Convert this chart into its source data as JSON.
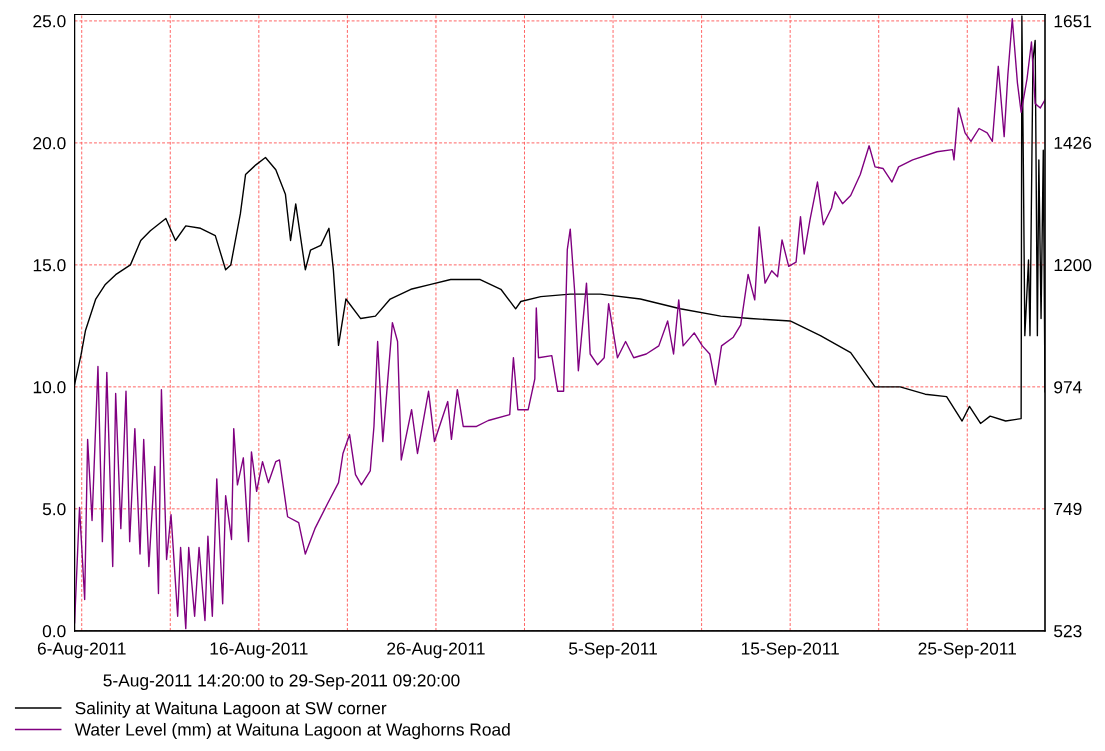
{
  "chart_data": {
    "type": "line",
    "xlim": [
      "2011-08-05T14:20",
      "2011-09-29T09:20"
    ],
    "xticks": [
      {
        "value": "2011-08-06",
        "label": "6-Aug-2011"
      },
      {
        "value": "2011-08-11",
        "label": null
      },
      {
        "value": "2011-08-16",
        "label": "16-Aug-2011"
      },
      {
        "value": "2011-08-21",
        "label": null
      },
      {
        "value": "2011-08-26",
        "label": "26-Aug-2011"
      },
      {
        "value": "2011-08-31",
        "label": null
      },
      {
        "value": "2011-09-05",
        "label": "5-Sep-2011"
      },
      {
        "value": "2011-09-10",
        "label": null
      },
      {
        "value": "2011-09-15",
        "label": "15-Sep-2011"
      },
      {
        "value": "2011-09-20",
        "label": null
      },
      {
        "value": "2011-09-25",
        "label": "25-Sep-2011"
      }
    ],
    "ylim": [
      0,
      25.26
    ],
    "yticks": [
      {
        "value": 0,
        "label": "0.0"
      },
      {
        "value": 5,
        "label": "5.0"
      },
      {
        "value": 10,
        "label": "10.0"
      },
      {
        "value": 15,
        "label": "15.0"
      },
      {
        "value": 20,
        "label": "20.0"
      },
      {
        "value": 25,
        "label": "25.0"
      }
    ],
    "y2lim": [
      523,
      1662.7
    ],
    "y2ticks": [
      523,
      749,
      974,
      1200,
      1426,
      1651
    ],
    "grid": true,
    "legend": "bottom",
    "marker": "none",
    "line_style": "solid",
    "annotations": [
      "5-Aug-2011 14:20:00 to 29-Sep-2011 09:20:00"
    ],
    "series": [
      {
        "name": "Salinity at Waituna Lagoon at SW corner",
        "color": "#000000",
        "x": [
          "2011-08-05T14:20",
          "2011-08-05T23:00",
          "2011-08-06T05:00",
          "2011-08-06T19:00",
          "2011-08-07T08:00",
          "2011-08-07T22:00",
          "2011-08-08T18:00",
          "2011-08-09T08:00",
          "2011-08-09T21:00",
          "2011-08-10T18:00",
          "2011-08-11T07:00",
          "2011-08-11T21:00",
          "2011-08-12T17:00",
          "2011-08-13T13:00",
          "2011-08-14T03:00",
          "2011-08-14T10:00",
          "2011-08-14T23:00",
          "2011-08-15T06:00",
          "2011-08-15T20:00",
          "2011-08-16T09:00",
          "2011-08-16T23:00",
          "2011-08-17T12:00",
          "2011-08-17T19:00",
          "2011-08-18T02:00",
          "2011-08-18T15:00",
          "2011-08-18T22:00",
          "2011-08-19T12:00",
          "2011-08-19T23:00",
          "2011-08-20T05:00",
          "2011-08-20T12:00",
          "2011-08-20T22:00",
          "2011-08-21T18:00",
          "2011-08-22T14:00",
          "2011-08-23T10:00",
          "2011-08-24T14:00",
          "2011-08-25T17:00",
          "2011-08-26T20:00",
          "2011-08-28T12:00",
          "2011-08-29T16:00",
          "2011-08-30T12:00",
          "2011-08-30T19:00",
          "2011-08-31T22:00",
          "2011-09-02T14:00",
          "2011-09-04T07:00",
          "2011-09-06T13:00",
          "2011-09-08T19:00",
          "2011-09-11T02:00",
          "2011-09-12T18:00",
          "2011-09-15T00:00",
          "2011-09-16T17:00",
          "2011-09-18T10:00",
          "2011-09-19T19:00",
          "2011-09-21T05:00",
          "2011-09-22T15:00",
          "2011-09-23T20:00",
          "2011-09-24T17:00",
          "2011-09-25T03:00",
          "2011-09-25T18:00",
          "2011-09-26T07:00",
          "2011-09-27T04:00",
          "2011-09-28T01:00",
          "2011-09-28T02:00",
          "2011-09-28T04:00",
          "2011-09-28T06:00",
          "2011-09-28T11:00",
          "2011-09-28T13:00",
          "2011-09-28T17:00",
          "2011-09-28T20:00",
          "2011-09-28T23:00",
          "2011-09-29T01:00",
          "2011-09-29T04:00",
          "2011-09-29T07:00",
          "2011-09-29T09:20"
        ],
        "values": [
          10.1,
          11.3,
          12.3,
          13.6,
          14.2,
          14.6,
          15.0,
          16.0,
          16.4,
          16.9,
          16.0,
          16.6,
          16.5,
          16.2,
          14.8,
          15.0,
          17.1,
          18.7,
          19.1,
          19.4,
          18.9,
          17.9,
          16.0,
          17.5,
          14.8,
          15.6,
          15.8,
          16.5,
          14.8,
          11.7,
          13.6,
          12.8,
          12.9,
          13.6,
          14.0,
          14.2,
          14.4,
          14.4,
          14.0,
          13.2,
          13.5,
          13.7,
          13.8,
          13.8,
          13.6,
          13.2,
          12.9,
          12.8,
          12.7,
          12.1,
          11.4,
          10.0,
          10.0,
          9.7,
          9.6,
          8.6,
          9.2,
          8.5,
          8.8,
          8.6,
          8.7,
          25.2,
          19.1,
          12.1,
          15.2,
          12.1,
          23.4,
          24.2,
          12.1,
          19.3,
          12.8,
          19.7,
          9.8
        ]
      },
      {
        "name": "Water Level (mm) at Waituna Lagoon at Waghorns Road",
        "color": "#800080",
        "axis": "y2",
        "x": [
          "2011-08-05T14:20",
          "2011-08-05T21:00",
          "2011-08-06T04:00",
          "2011-08-06T08:00",
          "2011-08-06T14:00",
          "2011-08-06T22:00",
          "2011-08-07T04:00",
          "2011-08-07T10:00",
          "2011-08-07T18:00",
          "2011-08-07T22:00",
          "2011-08-08T05:00",
          "2011-08-08T12:00",
          "2011-08-08T17:00",
          "2011-08-09T00:00",
          "2011-08-09T07:00",
          "2011-08-09T12:00",
          "2011-08-09T19:00",
          "2011-08-10T03:00",
          "2011-08-10T08:00",
          "2011-08-10T12:00",
          "2011-08-10T19:00",
          "2011-08-11T01:00",
          "2011-08-11T10:00",
          "2011-08-11T14:00",
          "2011-08-11T21:00",
          "2011-08-12T01:00",
          "2011-08-12T09:00",
          "2011-08-12T15:00",
          "2011-08-12T23:00",
          "2011-08-13T03:00",
          "2011-08-13T09:00",
          "2011-08-13T15:00",
          "2011-08-13T23:00",
          "2011-08-14T03:00",
          "2011-08-14T11:00",
          "2011-08-14T14:00",
          "2011-08-14T19:00",
          "2011-08-15T03:00",
          "2011-08-15T10:00",
          "2011-08-15T14:00",
          "2011-08-15T21:00",
          "2011-08-16T05:00",
          "2011-08-16T13:00",
          "2011-08-16T23:00",
          "2011-08-17T04:00",
          "2011-08-17T15:00",
          "2011-08-18T06:00",
          "2011-08-18T15:00",
          "2011-08-19T04:00",
          "2011-08-19T21:00",
          "2011-08-20T12:00",
          "2011-08-20T18:00",
          "2011-08-21T03:00",
          "2011-08-21T11:00",
          "2011-08-21T19:00",
          "2011-08-22T07:00",
          "2011-08-22T12:00",
          "2011-08-22T17:00",
          "2011-08-23T00:00",
          "2011-08-23T05:00",
          "2011-08-23T13:00",
          "2011-08-23T20:00",
          "2011-08-24T01:00",
          "2011-08-24T15:00",
          "2011-08-24T23:00",
          "2011-08-25T14:00",
          "2011-08-25T22:00",
          "2011-08-26T16:00",
          "2011-08-26T21:00",
          "2011-08-27T05:00",
          "2011-08-27T13:00",
          "2011-08-28T07:00",
          "2011-08-28T23:00",
          "2011-08-30T04:00",
          "2011-08-30T09:00",
          "2011-08-30T15:00",
          "2011-08-31T05:00",
          "2011-08-31T14:00",
          "2011-08-31T16:00",
          "2011-08-31T19:00",
          "2011-09-01T13:00",
          "2011-09-01T21:00",
          "2011-09-02T05:00",
          "2011-09-02T10:00",
          "2011-09-02T14:00",
          "2011-09-02T20:00",
          "2011-09-03T01:00",
          "2011-09-03T12:00",
          "2011-09-03T17:00",
          "2011-09-04T03:00",
          "2011-09-04T12:00",
          "2011-09-04T18:00",
          "2011-09-05T06:00",
          "2011-09-05T17:00",
          "2011-09-06T04:00",
          "2011-09-06T21:00",
          "2011-09-07T14:00",
          "2011-09-08T02:00",
          "2011-09-08T10:00",
          "2011-09-08T17:00",
          "2011-09-08T23:00",
          "2011-09-09T14:00",
          "2011-09-10T01:00",
          "2011-09-10T11:00",
          "2011-09-10T19:00",
          "2011-09-11T03:00",
          "2011-09-11T19:00",
          "2011-09-12T05:00",
          "2011-09-12T10:00",
          "2011-09-12T15:00",
          "2011-09-13T00:00",
          "2011-09-13T06:00",
          "2011-09-13T14:00",
          "2011-09-13T23:00",
          "2011-09-14T07:00",
          "2011-09-14T13:00",
          "2011-09-14T22:00",
          "2011-09-15T08:00",
          "2011-09-15T14:00",
          "2011-09-15T19:00",
          "2011-09-16T03:00",
          "2011-09-16T13:00",
          "2011-09-16T21:00",
          "2011-09-17T08:00",
          "2011-09-17T13:00",
          "2011-09-17T23:00",
          "2011-09-18T10:00",
          "2011-09-18T23:00",
          "2011-09-19T11:00",
          "2011-09-19T19:00",
          "2011-09-20T06:00",
          "2011-09-20T18:00",
          "2011-09-21T03:00",
          "2011-09-21T22:00",
          "2011-09-23T07:00",
          "2011-09-24T04:00",
          "2011-09-24T06:00",
          "2011-09-24T12:00",
          "2011-09-24T21:00",
          "2011-09-25T05:00",
          "2011-09-25T16:00",
          "2011-09-26T03:00",
          "2011-09-26T10:00",
          "2011-09-26T18:00",
          "2011-09-27T02:00",
          "2011-09-27T07:00",
          "2011-09-27T13:00",
          "2011-09-27T20:00",
          "2011-09-28T01:00",
          "2011-09-28T09:00",
          "2011-09-28T15:00",
          "2011-09-28T20:00",
          "2011-09-29T03:00",
          "2011-09-29T09:20"
        ],
        "values": [
          538,
          751,
          581,
          877,
          727,
          1012,
          688,
          1001,
          642,
          962,
          712,
          966,
          688,
          897,
          665,
          877,
          642,
          827,
          592,
          969,
          655,
          738,
          550,
          677,
          527,
          677,
          550,
          677,
          542,
          698,
          550,
          804,
          573,
          773,
          692,
          897,
          793,
          843,
          688,
          854,
          781,
          836,
          797,
          836,
          839,
          734,
          723,
          665,
          712,
          758,
          797,
          851,
          886,
          812,
          793,
          819,
          901,
          1058,
          873,
          958,
          1093,
          1058,
          839,
          932,
          851,
          966,
          873,
          947,
          877,
          969,
          901,
          901,
          912,
          923,
          1028,
          932,
          932,
          989,
          1120,
          1028,
          1032,
          966,
          966,
          1228,
          1266,
          1150,
          1004,
          1166,
          1035,
          1015,
          1028,
          1128,
          1028,
          1058,
          1028,
          1035,
          1050,
          1096,
          1035,
          1135,
          1050,
          1074,
          1050,
          1035,
          978,
          1050,
          1066,
          1089,
          1135,
          1182,
          1135,
          1270,
          1166,
          1189,
          1178,
          1246,
          1197,
          1205,
          1289,
          1220,
          1284,
          1353,
          1274,
          1305,
          1335,
          1313,
          1328,
          1367,
          1420,
          1381,
          1378,
          1353,
          1381,
          1394,
          1409,
          1413,
          1394,
          1490,
          1444,
          1428,
          1452,
          1444,
          1428,
          1567,
          1437,
          1551,
          1655,
          1536,
          1482,
          1544,
          1612,
          1498,
          1490,
          1505
        ]
      }
    ]
  }
}
